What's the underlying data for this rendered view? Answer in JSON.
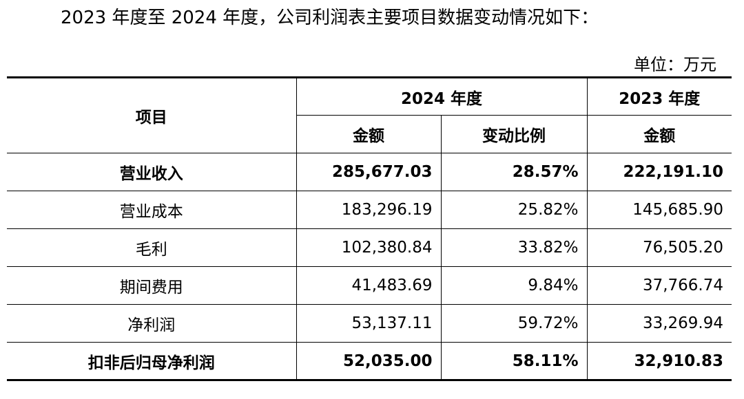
{
  "intro": "2023 年度至 2024 年度，公司利润表主要项目数据变动情况如下：",
  "unit": "单位：万元",
  "table": {
    "header": {
      "item": "项目",
      "y2024": "2024 年度",
      "y2023": "2023 年度",
      "amount": "金额",
      "change": "变动比例"
    },
    "rows": [
      {
        "name": "营业收入",
        "a2024": "285,677.03",
        "change": "28.57%",
        "a2023": "222,191.10",
        "bold": true
      },
      {
        "name": "营业成本",
        "a2024": "183,296.19",
        "change": "25.82%",
        "a2023": "145,685.90",
        "bold": false
      },
      {
        "name": "毛利",
        "a2024": "102,380.84",
        "change": "33.82%",
        "a2023": "76,505.20",
        "bold": false
      },
      {
        "name": "期间费用",
        "a2024": "41,483.69",
        "change": "9.84%",
        "a2023": "37,766.74",
        "bold": false
      },
      {
        "name": "净利润",
        "a2024": "53,137.11",
        "change": "59.72%",
        "a2023": "33,269.94",
        "bold": false
      },
      {
        "name": "扣非后归母净利润",
        "a2024": "52,035.00",
        "change": "58.11%",
        "a2023": "32,910.83",
        "bold": true
      }
    ]
  }
}
